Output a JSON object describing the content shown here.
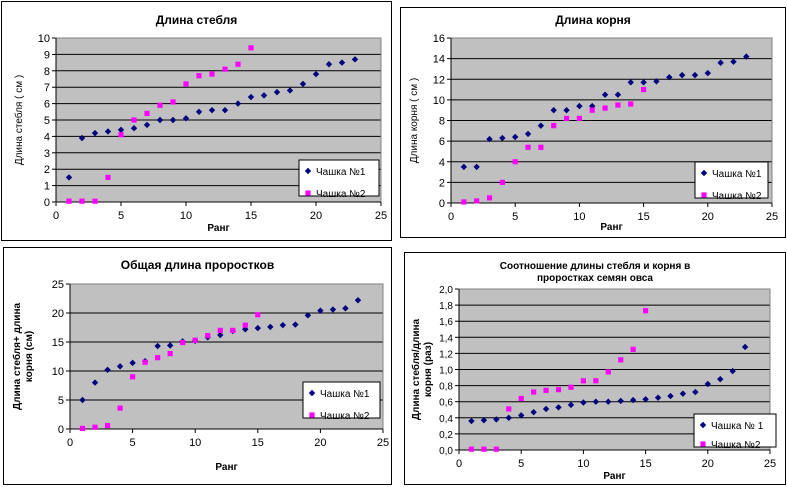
{
  "chart_data": [
    {
      "type": "scatter",
      "title": "Длина стебля",
      "xlabel": "Ранг",
      "ylabel": "Длина стебля ( см )",
      "xlim": [
        0,
        25
      ],
      "ylim": [
        0,
        10
      ],
      "xticks": [
        "0",
        "5",
        "10",
        "15",
        "20",
        "25"
      ],
      "yticks": [
        "0",
        "1",
        "2",
        "3",
        "4",
        "5",
        "6",
        "7",
        "8",
        "9",
        "10"
      ],
      "plot_bg": "#c0c0c0",
      "legend_position": "bottom-right",
      "series": [
        {
          "name": "Чашка №1",
          "color": "#000080",
          "marker": "diamond",
          "x": [
            1,
            2,
            3,
            4,
            5,
            6,
            7,
            8,
            9,
            10,
            11,
            12,
            13,
            14,
            15,
            16,
            17,
            18,
            19,
            20,
            21,
            22,
            23
          ],
          "y": [
            1.5,
            3.9,
            4.2,
            4.3,
            4.4,
            4.5,
            4.7,
            5.0,
            5.0,
            5.1,
            5.5,
            5.6,
            5.6,
            6.0,
            6.4,
            6.5,
            6.7,
            6.8,
            7.2,
            7.8,
            8.4,
            8.5,
            8.7
          ]
        },
        {
          "name": "Чашка №2",
          "color": "#ff00ff",
          "marker": "square",
          "x": [
            1,
            2,
            3,
            4,
            5,
            6,
            7,
            8,
            9,
            10,
            11,
            12,
            13,
            14,
            15
          ],
          "y": [
            0.05,
            0.05,
            0.05,
            1.5,
            4.1,
            5.0,
            5.4,
            5.9,
            6.1,
            7.2,
            7.7,
            7.8,
            8.1,
            8.4,
            9.4
          ]
        }
      ]
    },
    {
      "type": "scatter",
      "title": "Длина корня",
      "xlabel": "Ранг",
      "ylabel": "Длина корня ( см )",
      "xlim": [
        0,
        25
      ],
      "ylim": [
        0,
        16
      ],
      "xticks": [
        "0",
        "5",
        "10",
        "15",
        "20",
        "25"
      ],
      "yticks": [
        "0",
        "2",
        "4",
        "6",
        "8",
        "10",
        "12",
        "14",
        "16"
      ],
      "plot_bg": "#c0c0c0",
      "legend_position": "bottom-right",
      "series": [
        {
          "name": "Чашка №1",
          "color": "#000080",
          "marker": "diamond",
          "x": [
            1,
            2,
            3,
            4,
            5,
            6,
            7,
            8,
            9,
            10,
            11,
            12,
            13,
            14,
            15,
            16,
            17,
            18,
            19,
            20,
            21,
            22,
            23
          ],
          "y": [
            3.5,
            3.5,
            6.2,
            6.3,
            6.4,
            6.7,
            7.5,
            9.0,
            9.0,
            9.4,
            9.4,
            10.5,
            10.5,
            11.7,
            11.7,
            11.8,
            12.2,
            12.4,
            12.4,
            12.6,
            13.6,
            13.7,
            14.2
          ]
        },
        {
          "name": "Чашка №2",
          "color": "#ff00ff",
          "marker": "square",
          "x": [
            1,
            2,
            3,
            4,
            5,
            6,
            7,
            8,
            9,
            10,
            11,
            12,
            13,
            14,
            15
          ],
          "y": [
            0.1,
            0.2,
            0.5,
            2.0,
            4.0,
            5.4,
            5.4,
            7.5,
            8.2,
            8.2,
            9.0,
            9.2,
            9.5,
            9.6,
            11.0
          ]
        }
      ]
    },
    {
      "type": "scatter",
      "title": "Общая длина проростков",
      "xlabel": "Ранг",
      "ylabel": "Длина стебля+ длина корня (см)",
      "xlim": [
        0,
        25
      ],
      "ylim": [
        0,
        25
      ],
      "xticks": [
        "0",
        "5",
        "10",
        "15",
        "20",
        "25"
      ],
      "yticks": [
        "0",
        "5",
        "10",
        "15",
        "20",
        "25"
      ],
      "plot_bg": "#c0c0c0",
      "legend_position": "bottom-right",
      "series": [
        {
          "name": "Чашка №1",
          "color": "#000080",
          "marker": "diamond",
          "x": [
            1,
            2,
            3,
            4,
            5,
            6,
            7,
            8,
            9,
            10,
            11,
            12,
            13,
            14,
            15,
            16,
            17,
            18,
            19,
            20,
            21,
            22,
            23
          ],
          "y": [
            5.0,
            8.0,
            10.2,
            10.8,
            11.4,
            11.7,
            14.3,
            14.4,
            15.1,
            15.2,
            15.8,
            16.2,
            16.9,
            17.2,
            17.4,
            17.6,
            17.9,
            18.0,
            19.6,
            20.4,
            20.6,
            20.8,
            22.2
          ]
        },
        {
          "name": "Чашка №2",
          "color": "#ff00ff",
          "marker": "square",
          "x": [
            1,
            2,
            3,
            4,
            5,
            6,
            7,
            8,
            9,
            10,
            11,
            12,
            13,
            14,
            15
          ],
          "y": [
            0.1,
            0.3,
            0.6,
            3.6,
            9.0,
            11.5,
            12.3,
            13.0,
            14.9,
            15.3,
            16.1,
            17.0,
            17.0,
            17.9,
            19.7
          ]
        }
      ]
    },
    {
      "type": "scatter",
      "title": "Соотношение длины стебля и корня в проростках семян овса",
      "title_lines": [
        "Соотношение длины стебля и корня в",
        "проростках семян овса"
      ],
      "xlabel": "Ранг",
      "ylabel": "Длина стебля/длина корня (раз)",
      "ylabel_lines": [
        "Длина стебля/длина",
        "корня (раз)"
      ],
      "xlim": [
        0,
        25
      ],
      "ylim": [
        0,
        2
      ],
      "xticks": [
        "0",
        "5",
        "10",
        "15",
        "20",
        "25"
      ],
      "yticks": [
        "0,0",
        "0,2",
        "0,4",
        "0,6",
        "0,8",
        "1,0",
        "1,2",
        "1,4",
        "1,6",
        "1,8",
        "2,0"
      ],
      "plot_bg": "#c0c0c0",
      "legend_position": "bottom-right",
      "series": [
        {
          "name": "Чашка № 1",
          "color": "#000080",
          "marker": "diamond",
          "x": [
            1,
            2,
            3,
            4,
            5,
            6,
            7,
            8,
            9,
            10,
            11,
            12,
            13,
            14,
            15,
            16,
            17,
            18,
            19,
            20,
            21,
            22,
            23
          ],
          "y": [
            0.36,
            0.37,
            0.38,
            0.4,
            0.43,
            0.47,
            0.51,
            0.53,
            0.56,
            0.59,
            0.6,
            0.6,
            0.61,
            0.62,
            0.63,
            0.65,
            0.67,
            0.7,
            0.72,
            0.82,
            0.88,
            0.98,
            1.28
          ]
        },
        {
          "name": "Чашка №2",
          "color": "#ff00ff",
          "marker": "square",
          "x": [
            1,
            2,
            3,
            4,
            5,
            6,
            7,
            8,
            9,
            10,
            11,
            12,
            13,
            14,
            15
          ],
          "y": [
            0.01,
            0.01,
            0.01,
            0.51,
            0.64,
            0.72,
            0.74,
            0.75,
            0.78,
            0.86,
            0.86,
            0.97,
            1.12,
            1.25,
            1.73
          ]
        }
      ]
    }
  ]
}
